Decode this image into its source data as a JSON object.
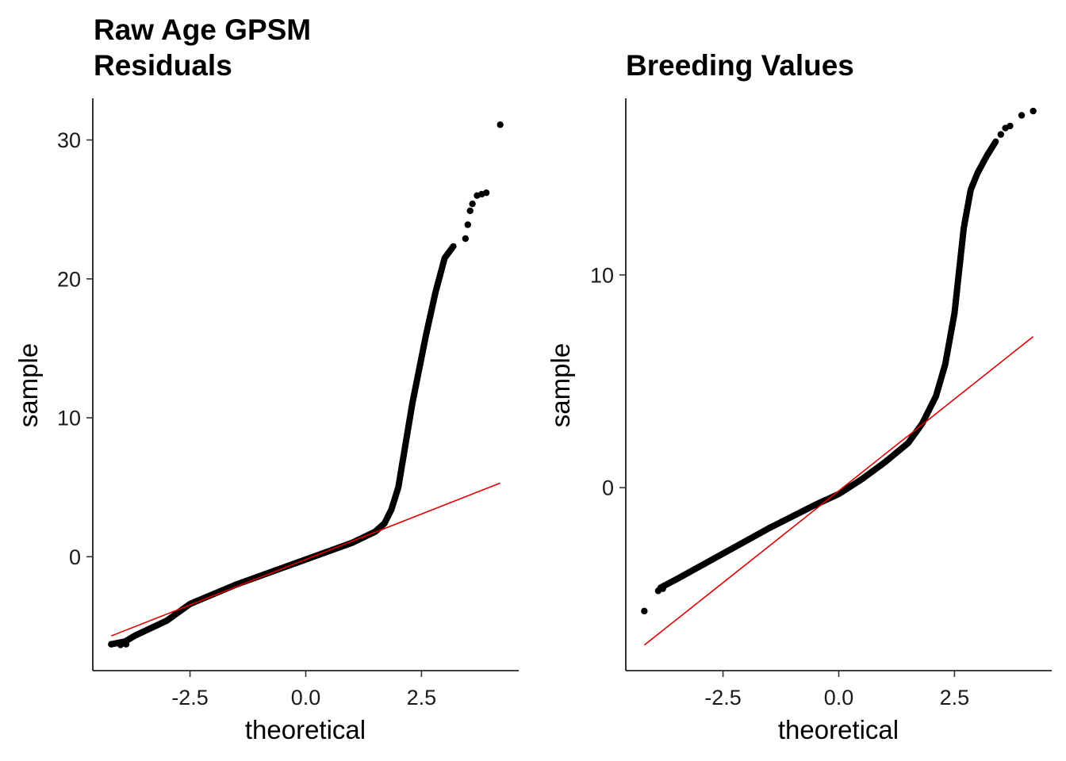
{
  "chart_data": [
    {
      "type": "scatter",
      "title_lines": [
        "Raw Age GPSM",
        "Residuals"
      ],
      "xlabel": "theoretical",
      "ylabel": "sample",
      "xlim": [
        -4.6,
        4.6
      ],
      "ylim": [
        -8.2,
        33.0
      ],
      "xticks": [
        -2.5,
        0.0,
        2.5
      ],
      "xtick_labels": [
        "-2.5",
        "0.0",
        "2.5"
      ],
      "yticks": [
        0,
        10,
        20,
        30
      ],
      "ytick_labels": [
        "0",
        "10",
        "20",
        "30"
      ],
      "point_color": "#000000",
      "line_color": "#dd0000",
      "reference_line": {
        "x": [
          -4.2,
          4.2
        ],
        "y": [
          -5.7,
          5.3
        ]
      },
      "curve_knots": [
        [
          -4.2,
          -6.3
        ],
        [
          -3.9,
          -6.1
        ],
        [
          -3.7,
          -5.7
        ],
        [
          -3.0,
          -4.6
        ],
        [
          -2.5,
          -3.4
        ],
        [
          -1.5,
          -2.0
        ],
        [
          -0.5,
          -0.8
        ],
        [
          0.0,
          -0.2
        ],
        [
          0.5,
          0.4
        ],
        [
          1.0,
          1.0
        ],
        [
          1.5,
          1.8
        ],
        [
          1.7,
          2.4
        ],
        [
          1.85,
          3.4
        ],
        [
          2.0,
          5.0
        ],
        [
          2.1,
          7.0
        ],
        [
          2.2,
          9.0
        ],
        [
          2.3,
          11.0
        ],
        [
          2.45,
          13.5
        ],
        [
          2.6,
          16.0
        ],
        [
          2.8,
          19.0
        ],
        [
          3.0,
          21.5
        ],
        [
          3.2,
          22.4
        ]
      ],
      "outliers": [
        [
          -4.2,
          -6.3
        ],
        [
          -4.0,
          -6.35
        ],
        [
          -3.88,
          -6.3
        ],
        [
          3.45,
          22.9
        ],
        [
          3.5,
          23.9
        ],
        [
          3.55,
          24.9
        ],
        [
          3.6,
          25.4
        ],
        [
          3.7,
          26.0
        ],
        [
          3.8,
          26.1
        ],
        [
          3.9,
          26.2
        ],
        [
          4.2,
          31.1
        ]
      ]
    },
    {
      "type": "scatter",
      "title_lines": [
        "Breeding Values"
      ],
      "xlabel": "theoretical",
      "ylabel": "sample",
      "xlim": [
        -4.6,
        4.6
      ],
      "ylim": [
        -8.6,
        18.3
      ],
      "xticks": [
        -2.5,
        0.0,
        2.5
      ],
      "xtick_labels": [
        "-2.5",
        "0.0",
        "2.5"
      ],
      "yticks": [
        0,
        10
      ],
      "ytick_labels": [
        "0",
        "10"
      ],
      "point_color": "#000000",
      "line_color": "#dd0000",
      "reference_line": {
        "x": [
          -4.2,
          4.2
        ],
        "y": [
          -7.4,
          7.1
        ]
      },
      "curve_knots": [
        [
          -3.85,
          -4.7
        ],
        [
          -3.5,
          -4.3
        ],
        [
          -3.0,
          -3.7
        ],
        [
          -2.5,
          -3.1
        ],
        [
          -2.0,
          -2.5
        ],
        [
          -1.5,
          -1.9
        ],
        [
          -1.0,
          -1.35
        ],
        [
          -0.5,
          -0.8
        ],
        [
          0.0,
          -0.3
        ],
        [
          0.5,
          0.4
        ],
        [
          1.0,
          1.2
        ],
        [
          1.5,
          2.1
        ],
        [
          1.8,
          3.0
        ],
        [
          2.1,
          4.3
        ],
        [
          2.3,
          5.8
        ],
        [
          2.5,
          8.2
        ],
        [
          2.6,
          10.2
        ],
        [
          2.7,
          12.2
        ],
        [
          2.85,
          14.0
        ],
        [
          3.0,
          14.8
        ],
        [
          3.2,
          15.6
        ],
        [
          3.4,
          16.3
        ]
      ],
      "outliers": [
        [
          -4.2,
          -5.8
        ],
        [
          -3.9,
          -4.85
        ],
        [
          -3.8,
          -4.75
        ],
        [
          3.5,
          16.6
        ],
        [
          3.6,
          16.9
        ],
        [
          3.7,
          17.0
        ],
        [
          3.95,
          17.5
        ],
        [
          4.2,
          17.7
        ]
      ]
    }
  ]
}
